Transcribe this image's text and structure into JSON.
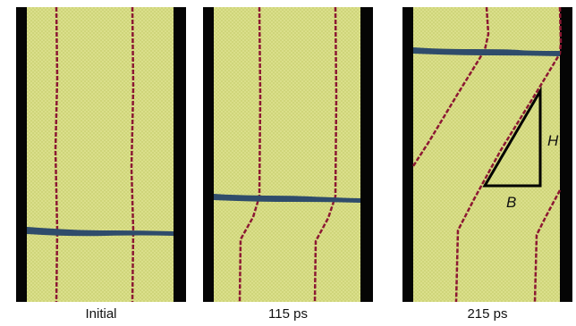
{
  "panels": [
    {
      "caption": "Initial"
    },
    {
      "caption": "115 ps"
    },
    {
      "caption": "215 ps"
    }
  ],
  "annotation": {
    "height_label": "H",
    "base_label": "B"
  },
  "colors": {
    "background_wall": "#050505",
    "crystal": "#cfd57a",
    "crystal_dot": "#e8ec9f",
    "dislocation_line": "#8c1833",
    "boundary_band": "#2f4c6b"
  }
}
